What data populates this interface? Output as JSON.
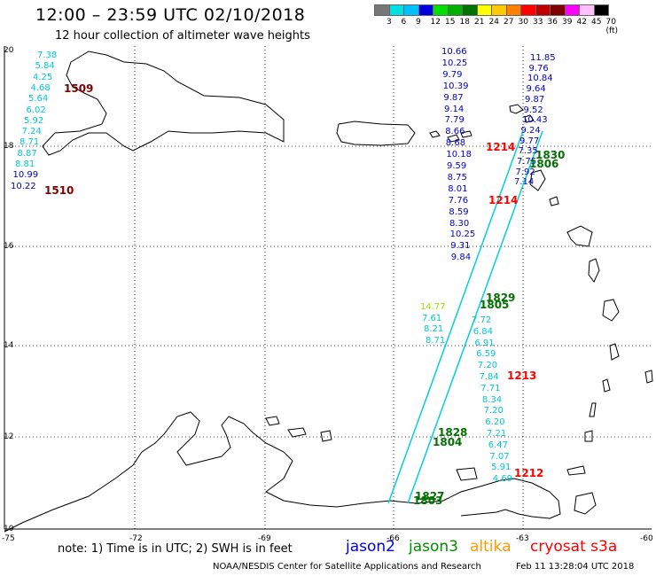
{
  "header": {
    "title": "12:00 – 23:59 UTC 02/10/2018",
    "subtitle": "12 hour collection of altimeter wave heights"
  },
  "scale": {
    "labels": [
      "3",
      "6",
      "9",
      "12",
      "15",
      "18",
      "21",
      "24",
      "27",
      "30",
      "33",
      "36",
      "39",
      "42",
      "45",
      "70 (ft)"
    ],
    "colors": [
      "#777777",
      "#00e0e0",
      "#00c0ff",
      "#0000dd",
      "#00e000",
      "#00b000",
      "#007000",
      "#ffff00",
      "#ffc800",
      "#ff8000",
      "#ff0000",
      "#c00000",
      "#800000",
      "#ff00ff",
      "#ffc0ff",
      "#000000"
    ]
  },
  "axes": {
    "lat_labels": [
      "20",
      "18",
      "16",
      "14",
      "12",
      "10"
    ],
    "lon_labels": [
      "-75",
      "-72",
      "-69",
      "-66",
      "-63",
      "-60"
    ]
  },
  "observations": {
    "west_column": [
      "7.38",
      "5.84",
      "4.25",
      "4.68",
      "5.64",
      "6.02",
      "5.92",
      "7.24",
      "8.71",
      "8.87",
      "8.81",
      "10.99",
      "10.22"
    ],
    "blue_column": [
      "10.66",
      "10.25",
      "9.79",
      "10.39",
      "9.87",
      "9.14",
      "7.79",
      "8.66",
      "8.68",
      "10.18",
      "9.59",
      "8.75",
      "8.01",
      "7.76",
      "8.59",
      "8.30",
      "10.25",
      "9.31",
      "9.84"
    ],
    "right_column": [
      "7.72",
      "6.84",
      "6.91",
      "6.59",
      "7.20",
      "7.84",
      "7.71",
      "8.34",
      "7.20",
      "6.20",
      "7.21",
      "6.47",
      "7.07",
      "5.91",
      "4.69"
    ],
    "ne_column": [
      "11.85",
      "9.76",
      "10.84",
      "9.64",
      "9.87",
      "9.52",
      "10.43",
      "9.24",
      "9.77",
      "7.35",
      "7.75",
      "7.92",
      "7.14"
    ],
    "mid_left": [
      "14.77",
      "7.61",
      "8.21",
      "8.71"
    ]
  },
  "pass_times": [
    {
      "label": "1509",
      "color": "#800000"
    },
    {
      "label": "1510",
      "color": "#800000"
    },
    {
      "label": "1214",
      "color": "#ff0000"
    },
    {
      "label": "1214",
      "color": "#ff0000"
    },
    {
      "label": "1830",
      "color": "#007000"
    },
    {
      "label": "1806",
      "color": "#007000"
    },
    {
      "label": "1829",
      "color": "#007000"
    },
    {
      "label": "1805",
      "color": "#007000"
    },
    {
      "label": "1213",
      "color": "#ff0000"
    },
    {
      "label": "1828",
      "color": "#007000"
    },
    {
      "label": "1804",
      "color": "#007000"
    },
    {
      "label": "1212",
      "color": "#ff0000"
    },
    {
      "label": "1827",
      "color": "#007000"
    },
    {
      "label": "1803",
      "color": "#007000"
    }
  ],
  "footer": {
    "note": "note: 1) Time is in UTC; 2) SWH is in feet",
    "legend": [
      {
        "label": "jason2",
        "color": "#0000dd"
      },
      {
        "label": "jason3",
        "color": "#009000"
      },
      {
        "label": "altika",
        "color": "#ff9900"
      },
      {
        "label": "cryosat s3a",
        "color": "#ff0000"
      }
    ],
    "credit": "NOAA/NESDIS Center for Satellite Applications and Research",
    "timestamp": "Feb 11 13:28:04 UTC 2018"
  }
}
